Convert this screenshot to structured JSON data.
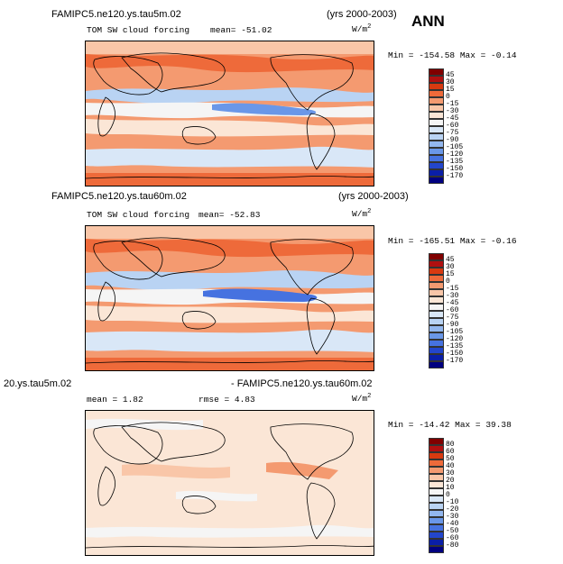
{
  "season": "ANN",
  "panels": [
    {
      "id": "p1",
      "case": "FAMIPC5.ne120.ys.tau5m.02",
      "years": "(yrs 2000-2003)",
      "variable": "TOM SW cloud forcing",
      "stat": "mean=  -51.02",
      "units": "W/m",
      "units_exp": "2",
      "minmax": "Min = -154.58  Max =  -0.14",
      "levels": [
        "45",
        "30",
        "15",
        "0",
        "-15",
        "-30",
        "-45",
        "-60",
        "-75",
        "-90",
        "-105",
        "-120",
        "-135",
        "-150",
        "-170"
      ],
      "colors": [
        "#800000",
        "#b01010",
        "#d83a10",
        "#ee6a3a",
        "#f49a70",
        "#f9c6a8",
        "#fbe6d6",
        "#f5f5f5",
        "#d9e7f7",
        "#b9d3f3",
        "#93b7ee",
        "#6a97e8",
        "#4672e0",
        "#2346cc",
        "#0a1fa8",
        "#000080"
      ]
    },
    {
      "id": "p2",
      "case": "FAMIPC5.ne120.ys.tau60m.02",
      "years": "(yrs 2000-2003)",
      "variable": "TOM SW cloud forcing",
      "stat": "mean=  -52.83",
      "units": "W/m",
      "units_exp": "2",
      "minmax": "Min = -165.51  Max =  -0.16",
      "levels": [
        "45",
        "30",
        "15",
        "0",
        "-15",
        "-30",
        "-45",
        "-60",
        "-75",
        "-90",
        "-105",
        "-120",
        "-135",
        "-150",
        "-170"
      ],
      "colors": [
        "#800000",
        "#b01010",
        "#d83a10",
        "#ee6a3a",
        "#f49a70",
        "#f9c6a8",
        "#fbe6d6",
        "#f5f5f5",
        "#d9e7f7",
        "#b9d3f3",
        "#93b7ee",
        "#6a97e8",
        "#4672e0",
        "#2346cc",
        "#0a1fa8",
        "#000080"
      ]
    },
    {
      "id": "p3",
      "case_left": "20.ys.tau5m.02",
      "case_right": "- FAMIPC5.ne120.ys.tau60m.02",
      "stat": "mean =    1.82",
      "rmse": "rmse =    4.83",
      "units": "W/m",
      "units_exp": "2",
      "minmax": "Min = -14.42  Max =  39.38",
      "levels": [
        "80",
        "60",
        "50",
        "40",
        "30",
        "20",
        "10",
        "0",
        "-10",
        "-20",
        "-30",
        "-40",
        "-50",
        "-60",
        "-80"
      ],
      "colors": [
        "#800000",
        "#b01010",
        "#d83a10",
        "#ee6a3a",
        "#f49a70",
        "#f9c6a8",
        "#fbe6d6",
        "#f5f5f5",
        "#d9e7f7",
        "#b9d3f3",
        "#93b7ee",
        "#6a97e8",
        "#4672e0",
        "#2346cc",
        "#0a1fa8",
        "#000080"
      ]
    }
  ]
}
